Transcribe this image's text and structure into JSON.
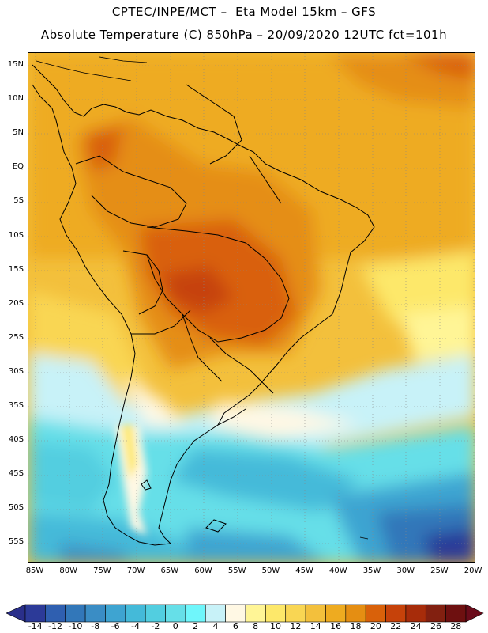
{
  "header": {
    "line1": "CPTEC/INPE/MCT –  Eta Model 15km – GFS",
    "line2": "Absolute Temperature (C) 850hPa – 20/09/2020 12UTC fct=101h"
  },
  "lat_labels": [
    "15N",
    "10N",
    "5N",
    "EQ",
    "5S",
    "10S",
    "15S",
    "20S",
    "25S",
    "30S",
    "35S",
    "40S",
    "45S",
    "50S",
    "55S"
  ],
  "lon_labels": [
    "85W",
    "80W",
    "75W",
    "70W",
    "65W",
    "60W",
    "55W",
    "50W",
    "45W",
    "40W",
    "35W",
    "30W",
    "25W",
    "20W"
  ],
  "colorbar": {
    "labels": [
      "-14",
      "-12",
      "-10",
      "-8",
      "-6",
      "-4",
      "-2",
      "0",
      "2",
      "4",
      "6",
      "8",
      "10",
      "12",
      "14",
      "16",
      "18",
      "20",
      "22",
      "24",
      "26",
      "28"
    ],
    "colors": [
      "#2c3a98",
      "#2f5fb0",
      "#3277b9",
      "#3a8dc5",
      "#3ea4d1",
      "#44bad9",
      "#52cee0",
      "#66dfe8",
      "#6ff6fb",
      "#c8f2f8",
      "#fff8e4",
      "#fff596",
      "#fde86a",
      "#f9d653",
      "#f3c03c",
      "#eeab20",
      "#e58e12",
      "#d9610a",
      "#c6420a",
      "#a72c0a",
      "#822010",
      "#6e1010"
    ],
    "low_color": "#2a2f8a",
    "high_color": "#6a0b1a"
  }
}
